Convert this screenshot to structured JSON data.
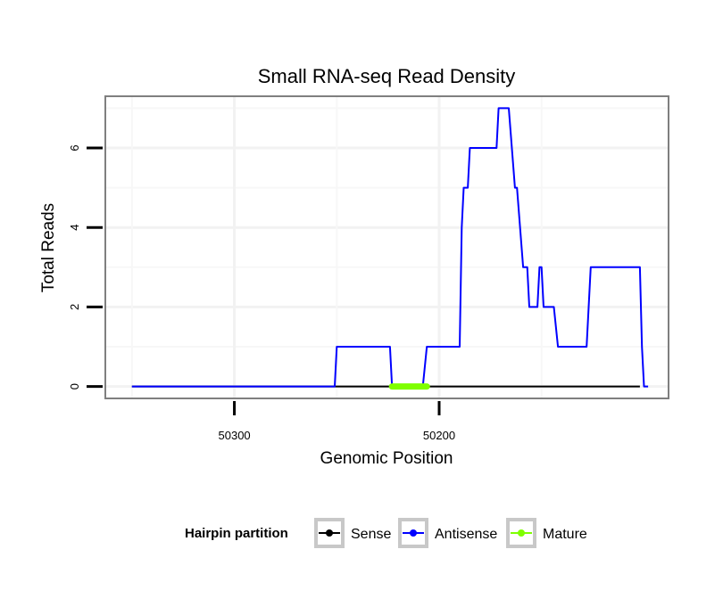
{
  "chart_data": {
    "type": "line",
    "title": "Small RNA-seq Read Density",
    "xlabel": "Genomic Position",
    "ylabel": "Total Reads",
    "x_reversed": true,
    "xlim": [
      50363,
      50088
    ],
    "ylim": [
      -0.3,
      7.3
    ],
    "x_ticks": [
      50300,
      50200
    ],
    "x_tick_labels": [
      "50300",
      "50200"
    ],
    "y_ticks": [
      0,
      2,
      4,
      6
    ],
    "y_tick_labels": [
      "0",
      "2",
      "4",
      "6"
    ],
    "grid": true,
    "series": [
      {
        "name": "Sense",
        "color": "#000000",
        "points": [
          [
            50350,
            0
          ],
          [
            50102,
            0
          ]
        ]
      },
      {
        "name": "Antisense",
        "color": "#0000ff",
        "points": [
          [
            50350,
            0
          ],
          [
            50251,
            0
          ],
          [
            50250,
            1
          ],
          [
            50224,
            1
          ],
          [
            50223,
            0
          ],
          [
            50208,
            0
          ],
          [
            50206,
            1
          ],
          [
            50190,
            1
          ],
          [
            50189,
            4
          ],
          [
            50188,
            5
          ],
          [
            50186,
            5
          ],
          [
            50185,
            6
          ],
          [
            50172,
            6
          ],
          [
            50171,
            7
          ],
          [
            50166,
            7
          ],
          [
            50163,
            5
          ],
          [
            50162,
            5
          ],
          [
            50159,
            3
          ],
          [
            50157,
            3
          ],
          [
            50156,
            2
          ],
          [
            50152,
            2
          ],
          [
            50151,
            3
          ],
          [
            50150,
            3
          ],
          [
            50149,
            2
          ],
          [
            50144,
            2
          ],
          [
            50142,
            1
          ],
          [
            50128,
            1
          ],
          [
            50127,
            2
          ],
          [
            50126,
            3
          ],
          [
            50102,
            3
          ],
          [
            50101,
            1
          ],
          [
            50100,
            0
          ],
          [
            50098,
            0
          ]
        ]
      },
      {
        "name": "Mature",
        "color": "#7fff00",
        "points": [
          [
            50223,
            0
          ],
          [
            50206,
            0
          ]
        ]
      }
    ],
    "legend": {
      "title": "Hairpin partition",
      "position": "bottom",
      "entries": [
        "Sense",
        "Antisense",
        "Mature"
      ]
    }
  }
}
